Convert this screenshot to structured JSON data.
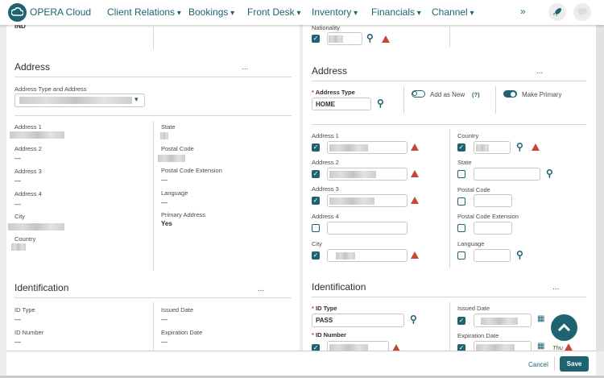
{
  "header": {
    "brand": "OPERA Cloud",
    "nav": [
      "Client Relations",
      "Bookings",
      "Front Desk",
      "Inventory",
      "Financials",
      "Channel"
    ],
    "more": "»",
    "icons": [
      "rocket-icon",
      "chat-icon"
    ]
  },
  "left": {
    "top_value": "IND",
    "address": {
      "title": "Address",
      "more": "...",
      "type_label": "Address Type and Address",
      "fields_left": [
        {
          "label": "Address 1",
          "value": ""
        },
        {
          "label": "Address 2",
          "value": "—"
        },
        {
          "label": "Address 3",
          "value": "—"
        },
        {
          "label": "Address 4",
          "value": "—"
        },
        {
          "label": "City",
          "value": ""
        },
        {
          "label": "Country",
          "value": ""
        }
      ],
      "fields_right": [
        {
          "label": "State",
          "value": ""
        },
        {
          "label": "Postal Code",
          "value": ""
        },
        {
          "label": "Postal Code Extension",
          "value": "—"
        },
        {
          "label": "Language",
          "value": "—"
        },
        {
          "label": "Primary Address",
          "value": "Yes"
        }
      ]
    },
    "identification": {
      "title": "Identification",
      "more": "...",
      "id_type": "ID Type",
      "id_type_value": "—",
      "id_number": "ID Number",
      "id_number_value": "—",
      "issued": "Issued Date",
      "issued_value": "—",
      "expiration": "Expiration Date",
      "expiration_value": "—"
    }
  },
  "right": {
    "nationality_label": "Nationality",
    "address": {
      "title": "Address",
      "more": "...",
      "type_label": "Address Type",
      "type_value": "HOME",
      "add_as_new": "Add as New",
      "help": "(?)",
      "make_primary": "Make Primary",
      "add_as_new_on": false,
      "make_primary_on": true,
      "fields_left": [
        "Address 1",
        "Address 2",
        "Address 3",
        "Address 4",
        "City"
      ],
      "fields_right": [
        "Country",
        "State",
        "Postal Code",
        "Postal Code Extension",
        "Language"
      ]
    },
    "identification": {
      "title": "Identification",
      "more": "...",
      "id_type": "ID Type",
      "id_type_value": "PASS",
      "id_number": "ID Number",
      "issued": "Issued Date",
      "expiration": "Expiration Date",
      "day": "Thu"
    }
  },
  "footer": {
    "cancel": "Cancel",
    "save": "Save"
  },
  "colors": {
    "accent": "#1d6470",
    "warning": "#c74634"
  }
}
